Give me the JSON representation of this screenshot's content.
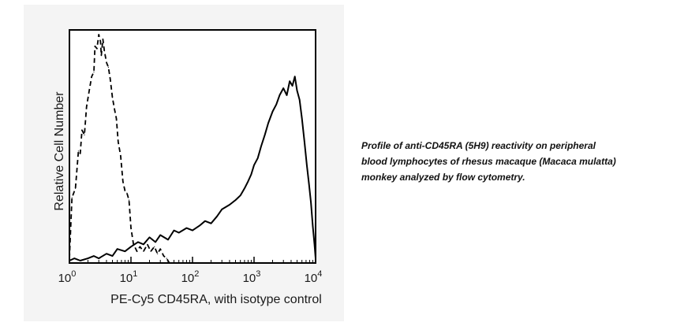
{
  "chart_data": {
    "type": "line",
    "xlabel": "PE-Cy5 CD45RA, with isotype control",
    "ylabel": "Relative Cell Number",
    "xscale": "log",
    "xlim": [
      1,
      10000
    ],
    "ylim": [
      0,
      100
    ],
    "x_ticks": [
      {
        "base": "10",
        "exp": "0"
      },
      {
        "base": "10",
        "exp": "1"
      },
      {
        "base": "10",
        "exp": "2"
      },
      {
        "base": "10",
        "exp": "3"
      },
      {
        "base": "10",
        "exp": "4"
      }
    ],
    "series": [
      {
        "style": "dashed",
        "x": [
          1.0,
          1.1,
          1.25,
          1.4,
          1.5,
          1.6,
          1.75,
          1.9,
          2.1,
          2.3,
          2.5,
          2.6,
          2.8,
          3.0,
          3.2,
          3.3,
          3.5,
          3.7,
          4.0,
          4.3,
          4.6,
          5.0,
          5.4,
          5.8,
          6.2,
          6.8,
          7.4,
          8.0,
          8.6,
          9.3,
          10.0,
          11.0,
          12.5,
          14.0,
          16.0,
          18.5,
          21.0,
          24.0,
          27.0,
          30.0,
          34.0,
          38.0,
          42.0
        ],
        "y": [
          2,
          28,
          32,
          48,
          47,
          57,
          55,
          67,
          74,
          80,
          82,
          93,
          92,
          98,
          95,
          89,
          96,
          91,
          86,
          84,
          79,
          71,
          66,
          62,
          52,
          46,
          35,
          31,
          30,
          27,
          15,
          8,
          5,
          7,
          5,
          8,
          5,
          7,
          4,
          6,
          3,
          2,
          0
        ]
      },
      {
        "style": "solid",
        "x": [
          1,
          1.2,
          1.5,
          2.0,
          2.5,
          3.0,
          4.0,
          5.0,
          6.0,
          8.0,
          10,
          13,
          16,
          20,
          25,
          30,
          40,
          50,
          60,
          80,
          100,
          130,
          160,
          200,
          250,
          300,
          400,
          500,
          600,
          700,
          800,
          900,
          1000,
          1150,
          1300,
          1500,
          1700,
          2000,
          2300,
          2600,
          3000,
          3400,
          3800,
          4200,
          4600,
          5000,
          5500,
          6000,
          6600,
          7200,
          7800,
          8400,
          9000,
          9600,
          10000
        ],
        "y": [
          1,
          2,
          1,
          2,
          3,
          2,
          4,
          3,
          6,
          5,
          7,
          9,
          8,
          11,
          9,
          12,
          10,
          14,
          13,
          15,
          14,
          16,
          18,
          17,
          20,
          23,
          25,
          27,
          29,
          32,
          35,
          38,
          42,
          45,
          50,
          55,
          60,
          65,
          68,
          72,
          75,
          72,
          78,
          76,
          80,
          74,
          70,
          62,
          52,
          42,
          34,
          26,
          16,
          8,
          2
        ]
      }
    ]
  },
  "caption": {
    "lines": [
      "Profile of anti-CD45RA (5H9) reactivity on peripheral",
      "blood lymphocytes of rhesus macaque (Macaca mulatta)",
      "monkey analyzed by flow cytometry."
    ]
  }
}
